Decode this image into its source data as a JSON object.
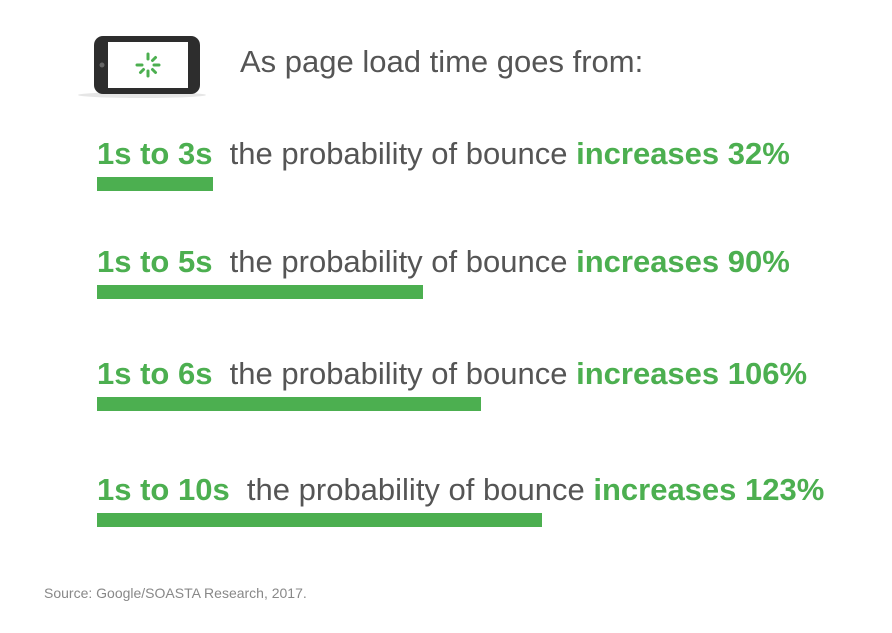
{
  "header": {
    "headline": "As page load time goes from:",
    "icon": "loading-phone-icon"
  },
  "colors": {
    "accent": "#4caf50",
    "text": "#555555",
    "source": "#888888"
  },
  "chart_data": {
    "type": "bar",
    "categories": [
      "1s to 3s",
      "1s to 5s",
      "1s to 6s",
      "1s to 10s"
    ],
    "values": [
      32,
      90,
      106,
      123
    ],
    "unit": "%",
    "middle_text": "the probability of bounce",
    "increase_prefix": "increases",
    "value_labels": [
      "32%",
      "90%",
      "106%",
      "123%"
    ]
  },
  "source": "Source: Google/SOASTA Research, 2017."
}
